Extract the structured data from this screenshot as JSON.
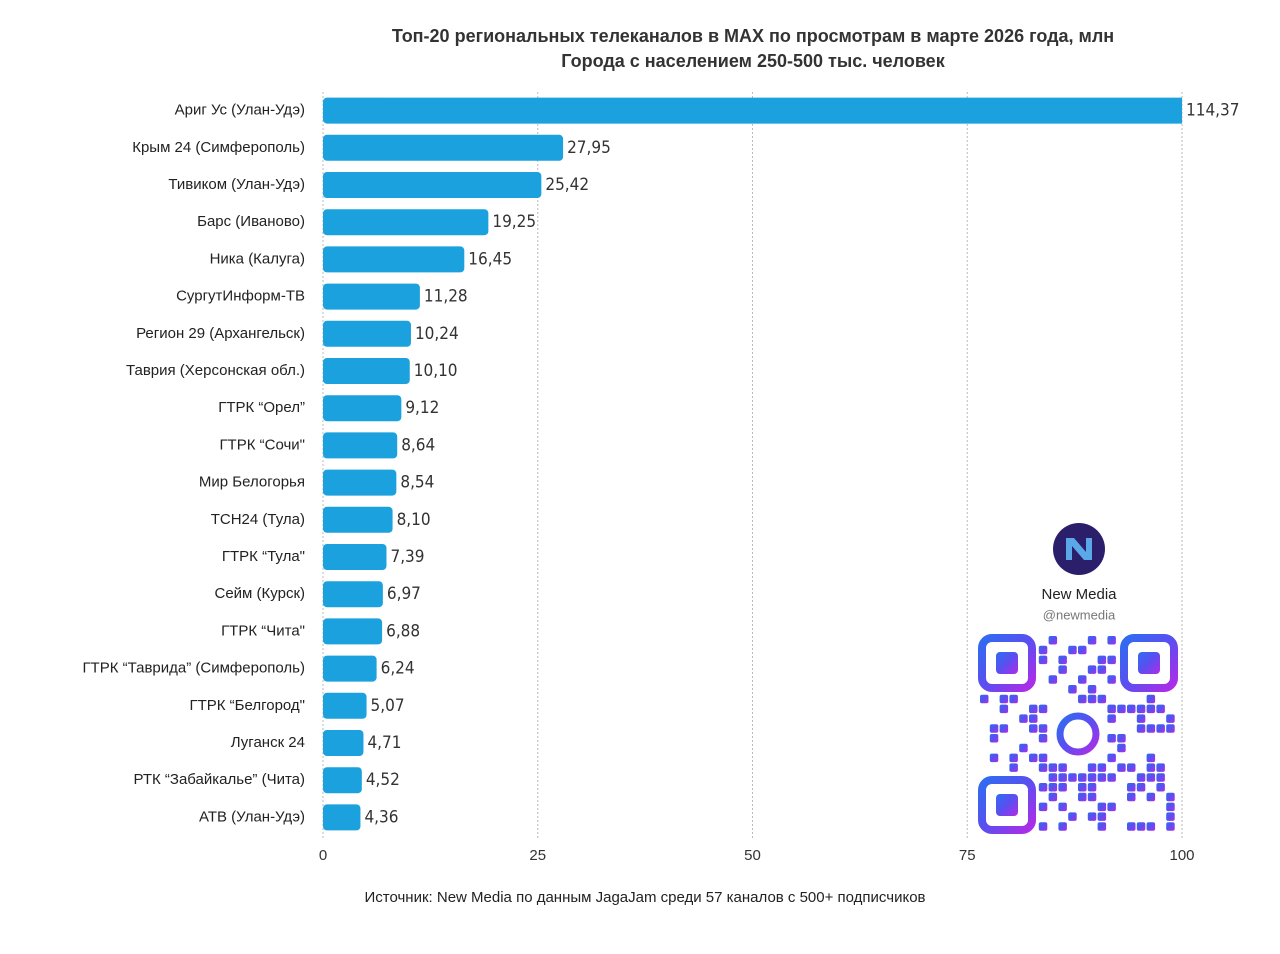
{
  "chart_data": {
    "type": "bar",
    "title": "Топ-20 региональных телеканалов в MAX по просмотрам в марте 2026 года, млн",
    "subtitle": "Города с населением 250-500 тыс. человек",
    "categories": [
      "Ариг Ус (Улан-Удэ)",
      "Крым 24 (Симферополь)",
      "Тивиком (Улан-Удэ)",
      "Барс (Иваново)",
      "Ника (Калуга)",
      "СургутИнформ-ТВ",
      "Регион 29 (Архангельск)",
      "Таврия (Херсонская обл.)",
      "ГТРК “Орел”",
      "ГТРК “Сочи\"",
      "Мир Белогорья",
      "ТСН24 (Тула)",
      "ГТРК “Тула\"",
      "Сейм (Курск)",
      "ГТРК “Чита\"",
      "ГТРК “Таврида” (Симферополь)",
      "ГТРК “Белгород\"",
      "Луганск 24",
      "РТК “Забайкалье” (Чита)",
      "АТВ (Улан-Удэ)"
    ],
    "values": [
      114.37,
      27.95,
      25.42,
      19.25,
      16.45,
      11.28,
      10.24,
      10.1,
      9.12,
      8.64,
      8.54,
      8.1,
      7.39,
      6.97,
      6.88,
      6.24,
      5.07,
      4.71,
      4.52,
      4.36
    ],
    "value_labels": [
      "114,37",
      "27,95",
      "25,42",
      "19,25",
      "16,45",
      "11,28",
      "10,24",
      "10,10",
      "9,12",
      "8,64",
      "8,54",
      "8,10",
      "7,39",
      "6,97",
      "6,88",
      "6,24",
      "5,07",
      "4,71",
      "4,52",
      "4,36"
    ],
    "color": "#1ba1dd",
    "xlim": [
      0,
      100
    ],
    "xticks": [
      0,
      25,
      50,
      75,
      100
    ],
    "grid": true,
    "source": "Источник: New Media по данным JagaJam среди 57 каналов с 500+ подписчиков"
  },
  "branding": {
    "logo": "New Media",
    "name": "New Media",
    "handle": "@newmedia"
  }
}
